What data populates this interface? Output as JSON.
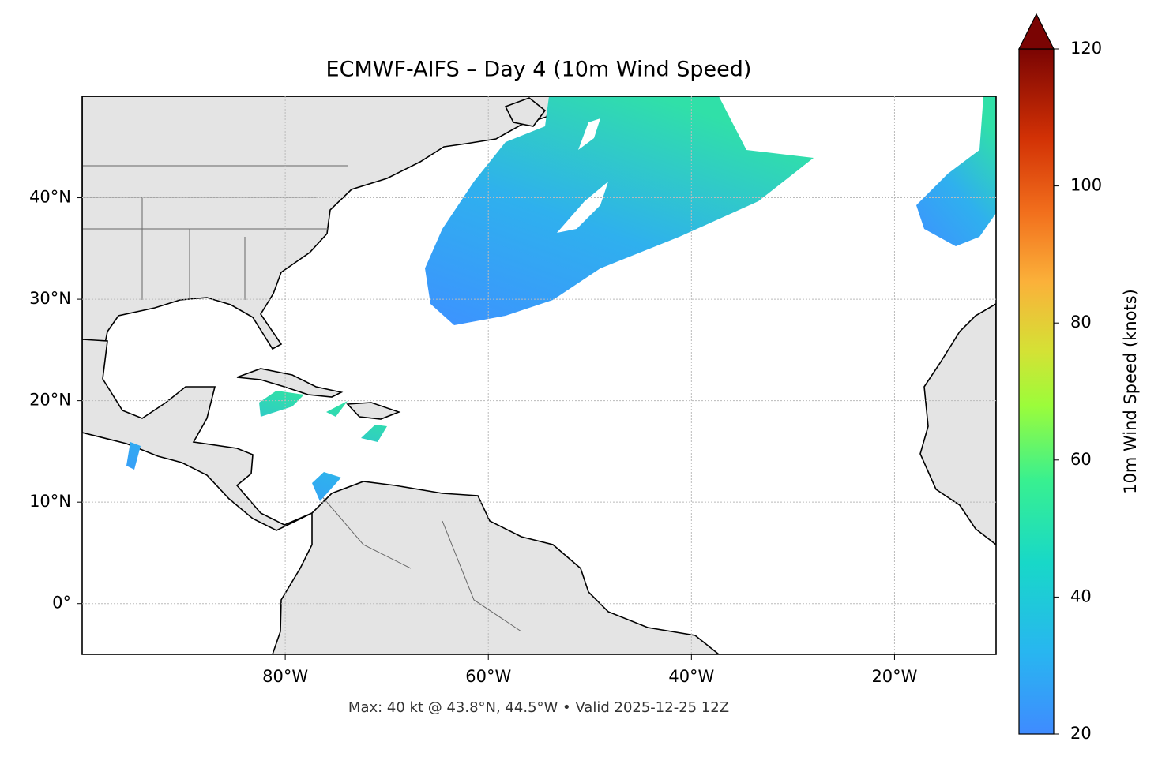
{
  "title": "ECMWF-AIFS – Day 4 (10m Wind Speed)",
  "map": {
    "xlim": [
      -100,
      -10
    ],
    "ylim": [
      -5,
      50
    ],
    "xticks": [
      {
        "value": -80,
        "label": "80°W"
      },
      {
        "value": -60,
        "label": "60°W"
      },
      {
        "value": -40,
        "label": "40°W"
      },
      {
        "value": -20,
        "label": "20°W"
      }
    ],
    "yticks": [
      {
        "value": 0,
        "label": "0°"
      },
      {
        "value": 10,
        "label": "10°N"
      },
      {
        "value": 20,
        "label": "20°N"
      },
      {
        "value": 30,
        "label": "30°N"
      },
      {
        "value": 40,
        "label": "40°N"
      }
    ],
    "grid": true
  },
  "colorbar": {
    "label": "10m Wind Speed (knots)",
    "lim": [
      20,
      120
    ],
    "ticks": [
      20,
      40,
      60,
      80,
      100,
      120
    ]
  },
  "footer": "Max: 40 kt @ 43.8°N, 44.5°W • Valid 2025-12-25 12Z"
}
